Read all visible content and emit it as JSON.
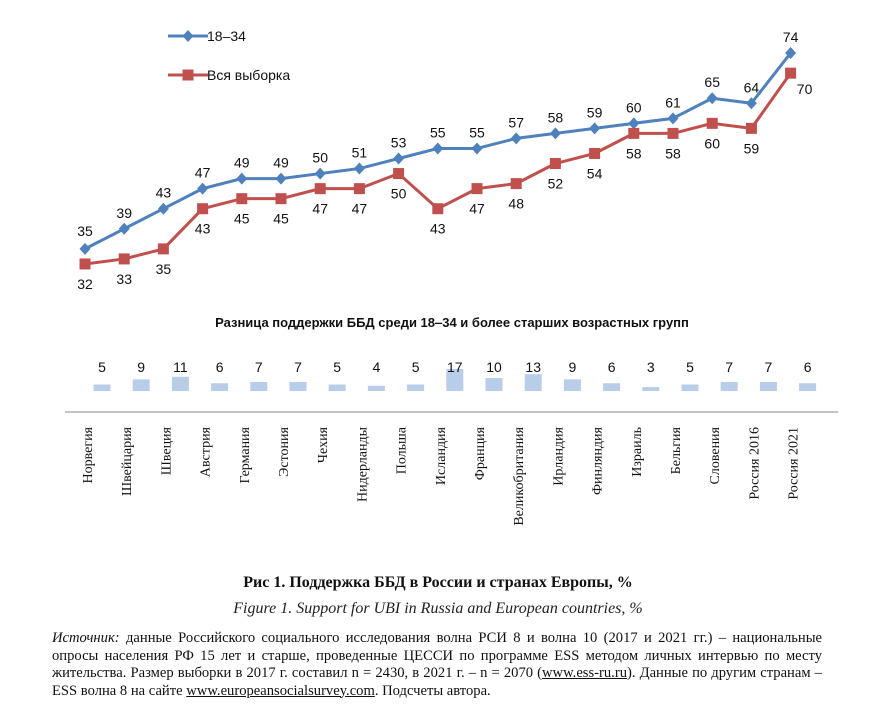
{
  "chart_data": [
    {
      "type": "line",
      "categories": [
        "Норвегия",
        "Швейцария",
        "Швеция",
        "Австрия",
        "Германия",
        "Эстония",
        "Чехия",
        "Нидерланды",
        "Польша",
        "Исландия",
        "Франция",
        "Великобритания",
        "Ирландия",
        "Финляндия",
        "Израиль",
        "Бельгия",
        "Словения",
        "Россия 2016",
        "Россия 2021"
      ],
      "series": [
        {
          "name": "18–34",
          "color": "#4f81bd",
          "marker": "diamond",
          "values": [
            35,
            39,
            43,
            47,
            49,
            49,
            50,
            51,
            53,
            55,
            55,
            57,
            58,
            59,
            60,
            61,
            65,
            64,
            74
          ]
        },
        {
          "name": "Вся выборка",
          "color": "#c0504d",
          "marker": "square",
          "values": [
            32,
            33,
            35,
            43,
            45,
            45,
            47,
            47,
            50,
            43,
            47,
            48,
            52,
            54,
            58,
            58,
            60,
            59,
            70
          ]
        }
      ],
      "legend": [
        "18–34",
        "Вся выборка"
      ],
      "legend_position": "top-left",
      "ylim": [
        30,
        76
      ]
    },
    {
      "type": "bar",
      "title": "Разница поддержки  ББД среди 18‒34 и более старших возрастных групп",
      "categories": [
        "Норвегия",
        "Швейцария",
        "Швеция",
        "Австрия",
        "Германия",
        "Эстония",
        "Чехия",
        "Нидерланды",
        "Польша",
        "Исландия",
        "Франция",
        "Великобритания",
        "Ирландия",
        "Финляндия",
        "Израиль",
        "Бельгия",
        "Словения",
        "Россия 2016",
        "Россия 2021"
      ],
      "values": [
        5,
        9,
        11,
        6,
        7,
        7,
        5,
        4,
        5,
        17,
        10,
        13,
        9,
        6,
        3,
        5,
        7,
        7,
        6
      ],
      "color": "#b8cde8",
      "ylim": [
        0,
        17
      ]
    }
  ],
  "caption": {
    "ru": "Рис 1. Поддержка ББД в России и странах Европы, %",
    "en": "Figure 1. Support for UBI in Russia and European countries, %"
  },
  "source": {
    "lead": "Источник:",
    "part1": " данные Российского социального исследования волна РСИ 8 и волна 10 (2017 и 2021 гг.) – национальные опросы населения РФ 15 лет и старше, проведенные ЦЕССИ по программе ESS методом личных интервью по месту жительства. Размер выборки в 2017 г. составил n = 2430, в 2021 г. – n = 2070 (",
    "link1": "www.ess-ru.ru",
    "part2": "). Данные по другим странам – ESS волна 8 на сайте ",
    "link2": "www.europeansocialsurvey.com",
    "part3": ". Подсчеты автора."
  }
}
